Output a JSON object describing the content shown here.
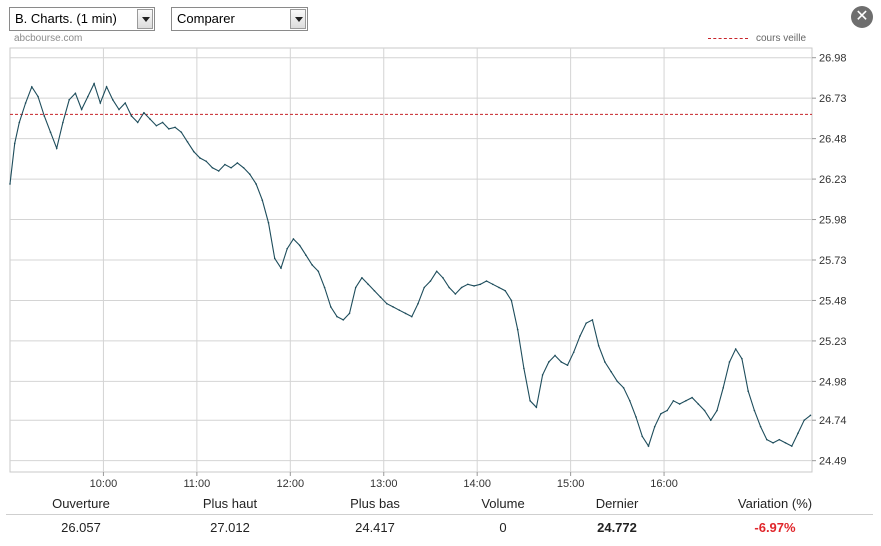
{
  "toolbar": {
    "chart_select": "B. Charts. (1 min)",
    "compare_select": "Comparer",
    "close_icon": "close-icon"
  },
  "watermark": "abcbourse.com",
  "legend": {
    "label": "cours veille",
    "color": "#c8242a"
  },
  "chart_data": {
    "type": "line",
    "title": "",
    "xlabel": "",
    "ylabel": "",
    "x_ticks": [
      "10:00",
      "11:00",
      "12:00",
      "13:00",
      "14:00",
      "15:00",
      "16:00"
    ],
    "y_ticks": [
      "26.98",
      "26.73",
      "26.48",
      "26.23",
      "25.98",
      "25.73",
      "25.48",
      "25.23",
      "24.98",
      "24.74",
      "24.49"
    ],
    "y_range": [
      24.42,
      27.04
    ],
    "x_range": [
      "09:00",
      "17:35"
    ],
    "grid": true,
    "previous_close": 26.63,
    "series": [
      {
        "color": "#1e4d5c",
        "points": [
          [
            "09:00",
            26.2
          ],
          [
            "09:03",
            26.45
          ],
          [
            "09:06",
            26.58
          ],
          [
            "09:10",
            26.7
          ],
          [
            "09:14",
            26.8
          ],
          [
            "09:18",
            26.74
          ],
          [
            "09:22",
            26.62
          ],
          [
            "09:26",
            26.52
          ],
          [
            "09:30",
            26.42
          ],
          [
            "09:34",
            26.58
          ],
          [
            "09:38",
            26.72
          ],
          [
            "09:42",
            26.76
          ],
          [
            "09:46",
            26.66
          ],
          [
            "09:50",
            26.74
          ],
          [
            "09:54",
            26.82
          ],
          [
            "09:58",
            26.7
          ],
          [
            "10:02",
            26.8
          ],
          [
            "10:06",
            26.72
          ],
          [
            "10:10",
            26.66
          ],
          [
            "10:14",
            26.7
          ],
          [
            "10:18",
            26.62
          ],
          [
            "10:22",
            26.58
          ],
          [
            "10:26",
            26.64
          ],
          [
            "10:30",
            26.6
          ],
          [
            "10:34",
            26.56
          ],
          [
            "10:38",
            26.58
          ],
          [
            "10:42",
            26.54
          ],
          [
            "10:46",
            26.55
          ],
          [
            "10:50",
            26.52
          ],
          [
            "10:54",
            26.46
          ],
          [
            "10:58",
            26.4
          ],
          [
            "11:02",
            26.36
          ],
          [
            "11:06",
            26.34
          ],
          [
            "11:10",
            26.3
          ],
          [
            "11:14",
            26.28
          ],
          [
            "11:18",
            26.32
          ],
          [
            "11:22",
            26.3
          ],
          [
            "11:26",
            26.33
          ],
          [
            "11:30",
            26.3
          ],
          [
            "11:34",
            26.26
          ],
          [
            "11:38",
            26.2
          ],
          [
            "11:42",
            26.1
          ],
          [
            "11:46",
            25.96
          ],
          [
            "11:50",
            25.74
          ],
          [
            "11:54",
            25.68
          ],
          [
            "11:58",
            25.8
          ],
          [
            "12:02",
            25.86
          ],
          [
            "12:06",
            25.82
          ],
          [
            "12:10",
            25.76
          ],
          [
            "12:14",
            25.7
          ],
          [
            "12:18",
            25.66
          ],
          [
            "12:22",
            25.56
          ],
          [
            "12:26",
            25.44
          ],
          [
            "12:30",
            25.38
          ],
          [
            "12:34",
            25.36
          ],
          [
            "12:38",
            25.4
          ],
          [
            "12:42",
            25.56
          ],
          [
            "12:46",
            25.62
          ],
          [
            "12:50",
            25.58
          ],
          [
            "12:54",
            25.54
          ],
          [
            "12:58",
            25.5
          ],
          [
            "13:02",
            25.46
          ],
          [
            "13:06",
            25.44
          ],
          [
            "13:10",
            25.42
          ],
          [
            "13:14",
            25.4
          ],
          [
            "13:18",
            25.38
          ],
          [
            "13:22",
            25.46
          ],
          [
            "13:26",
            25.56
          ],
          [
            "13:30",
            25.6
          ],
          [
            "13:34",
            25.66
          ],
          [
            "13:38",
            25.62
          ],
          [
            "13:42",
            25.56
          ],
          [
            "13:46",
            25.52
          ],
          [
            "13:50",
            25.56
          ],
          [
            "13:54",
            25.58
          ],
          [
            "13:58",
            25.57
          ],
          [
            "14:02",
            25.58
          ],
          [
            "14:06",
            25.6
          ],
          [
            "14:10",
            25.58
          ],
          [
            "14:14",
            25.56
          ],
          [
            "14:18",
            25.54
          ],
          [
            "14:22",
            25.48
          ],
          [
            "14:26",
            25.3
          ],
          [
            "14:30",
            25.06
          ],
          [
            "14:34",
            24.86
          ],
          [
            "14:38",
            24.82
          ],
          [
            "14:42",
            25.02
          ],
          [
            "14:46",
            25.1
          ],
          [
            "14:50",
            25.14
          ],
          [
            "14:54",
            25.1
          ],
          [
            "14:58",
            25.08
          ],
          [
            "15:02",
            25.16
          ],
          [
            "15:06",
            25.26
          ],
          [
            "15:10",
            25.34
          ],
          [
            "15:14",
            25.36
          ],
          [
            "15:18",
            25.2
          ],
          [
            "15:22",
            25.1
          ],
          [
            "15:26",
            25.04
          ],
          [
            "15:30",
            24.98
          ],
          [
            "15:34",
            24.94
          ],
          [
            "15:38",
            24.86
          ],
          [
            "15:42",
            24.76
          ],
          [
            "15:46",
            24.64
          ],
          [
            "15:50",
            24.58
          ],
          [
            "15:54",
            24.7
          ],
          [
            "15:58",
            24.78
          ],
          [
            "16:02",
            24.8
          ],
          [
            "16:06",
            24.86
          ],
          [
            "16:10",
            24.84
          ],
          [
            "16:14",
            24.86
          ],
          [
            "16:18",
            24.88
          ],
          [
            "16:22",
            24.84
          ],
          [
            "16:26",
            24.8
          ],
          [
            "16:30",
            24.74
          ],
          [
            "16:34",
            24.8
          ],
          [
            "16:38",
            24.94
          ],
          [
            "16:42",
            25.1
          ],
          [
            "16:46",
            25.18
          ],
          [
            "16:50",
            25.12
          ],
          [
            "16:54",
            24.92
          ],
          [
            "16:58",
            24.8
          ],
          [
            "17:02",
            24.7
          ],
          [
            "17:06",
            24.62
          ],
          [
            "17:10",
            24.6
          ],
          [
            "17:14",
            24.62
          ],
          [
            "17:18",
            24.6
          ],
          [
            "17:22",
            24.58
          ],
          [
            "17:26",
            24.66
          ],
          [
            "17:30",
            24.74
          ],
          [
            "17:34",
            24.77
          ]
        ]
      }
    ]
  },
  "stats": {
    "headers": [
      "Ouverture",
      "Plus haut",
      "Plus bas",
      "Volume",
      "Dernier",
      "Variation (%)"
    ],
    "values": [
      "26.057",
      "27.012",
      "24.417",
      "0",
      "24.772",
      "-6.97%"
    ],
    "negative_color": "#e0262b"
  }
}
